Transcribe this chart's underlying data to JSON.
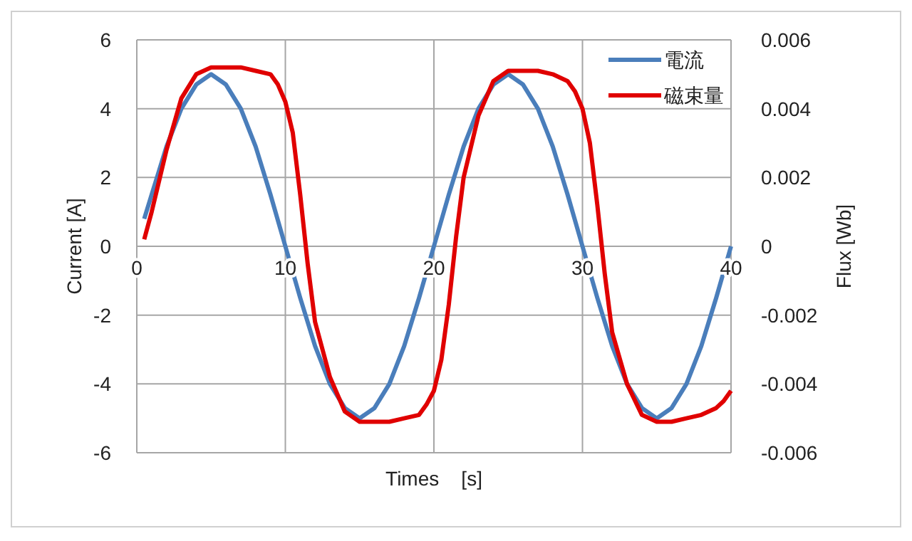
{
  "chart_data": {
    "type": "line",
    "xlabel": "Times    [s]",
    "ylabel": "Current [A]",
    "y2label": "Flux [Wb]",
    "xlim": [
      0,
      40
    ],
    "xticks": [
      0,
      10,
      20,
      30,
      40
    ],
    "ylim": [
      -6,
      6
    ],
    "yticks": [
      -6,
      -4,
      -2,
      0,
      2,
      4,
      6
    ],
    "y2lim": [
      -0.006,
      0.006
    ],
    "y2ticks": [
      -0.006,
      -0.004,
      -0.002,
      0,
      0.002,
      0.004,
      0.006
    ],
    "grid": true,
    "legend": "top right",
    "marker": "none",
    "line_style": "solid",
    "series": [
      {
        "name": "電流",
        "color": "#4a7ebb",
        "x": [
          0.5,
          1,
          2,
          3,
          4,
          5,
          6,
          7,
          8,
          9,
          10,
          11,
          12,
          13,
          14,
          15,
          16,
          17,
          18,
          19,
          20,
          21,
          22,
          23,
          24,
          25,
          26,
          27,
          28,
          29,
          30,
          31,
          32,
          33,
          34,
          35,
          36,
          37,
          38,
          39,
          40
        ],
        "values": [
          0.8,
          1.5,
          2.9,
          4.0,
          4.7,
          5.0,
          4.7,
          4.0,
          2.9,
          1.5,
          0,
          -1.5,
          -2.9,
          -4.0,
          -4.7,
          -5.0,
          -4.7,
          -4.0,
          -2.9,
          -1.5,
          0,
          1.5,
          2.9,
          4.0,
          4.7,
          5.0,
          4.7,
          4.0,
          2.9,
          1.5,
          0,
          -1.5,
          -2.9,
          -4.0,
          -4.7,
          -5.0,
          -4.7,
          -4.0,
          -2.9,
          -1.5,
          0
        ]
      },
      {
        "name": "磁束量",
        "color": "#e00000",
        "axis": "y2",
        "x": [
          0.5,
          1,
          2,
          3,
          4,
          5,
          6,
          7,
          8,
          9,
          9.5,
          10,
          10.5,
          11,
          11.5,
          12,
          13,
          14,
          15,
          16,
          17,
          18,
          19,
          19.5,
          20,
          20.5,
          21,
          21.5,
          22,
          23,
          24,
          25,
          26,
          27,
          28,
          29,
          29.5,
          30,
          30.5,
          31,
          31.5,
          32,
          33,
          34,
          35,
          36,
          37,
          38,
          39,
          39.5,
          40
        ],
        "values": [
          0.0002,
          0.001,
          0.0028,
          0.0043,
          0.005,
          0.0052,
          0.0052,
          0.0052,
          0.0051,
          0.005,
          0.0047,
          0.0042,
          0.0033,
          0.0015,
          -0.0005,
          -0.0022,
          -0.0038,
          -0.0048,
          -0.0051,
          -0.0051,
          -0.0051,
          -0.005,
          -0.0049,
          -0.0046,
          -0.0042,
          -0.0033,
          -0.0017,
          0.0003,
          0.002,
          0.0038,
          0.0048,
          0.0051,
          0.0051,
          0.0051,
          0.005,
          0.0048,
          0.0045,
          0.004,
          0.003,
          0.0012,
          -0.0008,
          -0.0025,
          -0.004,
          -0.0049,
          -0.0051,
          -0.0051,
          -0.005,
          -0.0049,
          -0.0047,
          -0.0045,
          -0.0042
        ]
      }
    ]
  }
}
